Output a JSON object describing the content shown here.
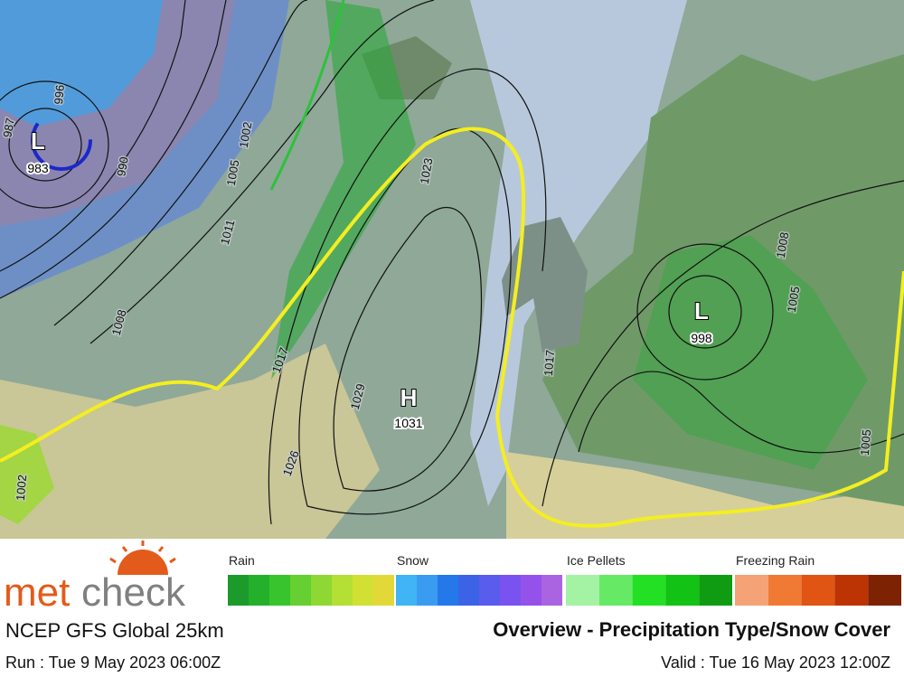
{
  "map": {
    "centers": [
      {
        "symbol": "H",
        "pressure": 1031
      },
      {
        "symbol": "L",
        "pressure": 998
      },
      {
        "symbol": "L",
        "pressure": 983
      }
    ],
    "isobar_labels": [
      1023,
      1029,
      1026,
      1017,
      1011,
      1005,
      1002,
      1008,
      996,
      987,
      990,
      1008,
      1005,
      1017,
      1002,
      1005
    ]
  },
  "legend": {
    "groups": [
      {
        "label": "Rain",
        "colors": [
          "#1c9a2c",
          "#24b02a",
          "#38c42c",
          "#66cf32",
          "#8fd834",
          "#b4df34",
          "#d2e034",
          "#e2d838"
        ]
      },
      {
        "label": "Snow",
        "colors": [
          "#40b4f4",
          "#3a9cf0",
          "#2478ea",
          "#3c62e6",
          "#5a5cee",
          "#7a52f0",
          "#9452ea",
          "#aa64e2"
        ]
      },
      {
        "label": "Ice Pellets",
        "colors": [
          "#a4f2a4",
          "#66ea66",
          "#24e024",
          "#12c214",
          "#109c12"
        ]
      },
      {
        "label": "Freezing Rain",
        "colors": [
          "#f4a276",
          "#f07a34",
          "#e05414",
          "#bc3404",
          "#7e2204"
        ]
      }
    ]
  },
  "footer": {
    "brand_a": "met",
    "brand_b": "check",
    "model": "NCEP GFS Global 25km",
    "title": "Overview - Precipitation Type/Snow Cover",
    "run": "Run : Tue 9 May 2023 06:00Z",
    "valid": "Valid : Tue 16 May 2023 12:00Z"
  }
}
